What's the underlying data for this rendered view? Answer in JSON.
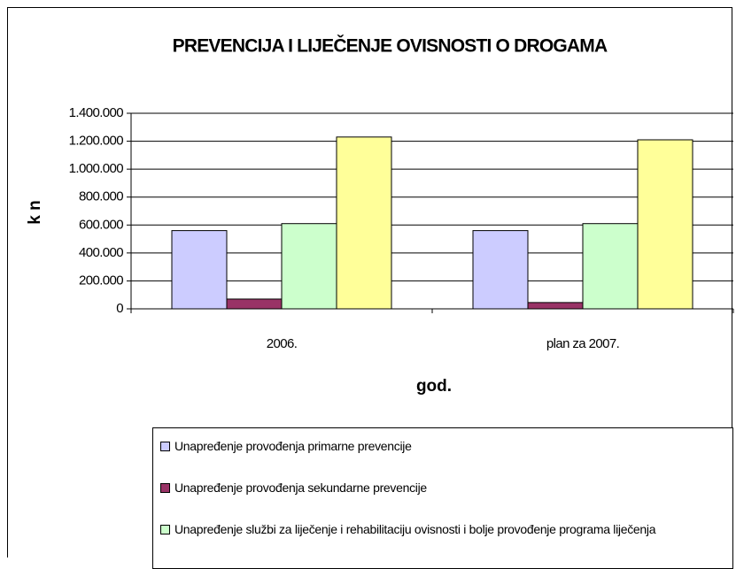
{
  "chart_data": {
    "type": "bar",
    "title": "PREVENCIJA I LIJEČENJE OVISNOSTI O DROGAMA",
    "xlabel": "god.",
    "ylabel": "k n",
    "categories": [
      "2006.",
      "plan za 2007."
    ],
    "series": [
      {
        "name": "Unapređenje provođenja primarne prevencije",
        "color": "#ccccff",
        "values": [
          560000,
          560000
        ]
      },
      {
        "name": "Unapređenje provođenja sekundarne prevencije",
        "color": "#993366",
        "values": [
          70000,
          45000
        ]
      },
      {
        "name": "Unapređenje službi za liječenje i rehabilitaciju ovisnosti i bolje provođenje programa liječenja",
        "color": "#ccffcc",
        "values": [
          610000,
          610000
        ]
      },
      {
        "color": "#ffff99",
        "values": [
          1230000,
          1210000
        ]
      }
    ],
    "ylim": [
      0,
      1400000
    ],
    "yticks": [
      0,
      {
        "value": 200000,
        "label": "200.000"
      },
      {
        "value": 400000,
        "label": "400.000"
      },
      {
        "value": 600000,
        "label": "600.000"
      },
      {
        "value": 800000,
        "label": "800.000"
      },
      {
        "value": 1000000,
        "label": "1.000.000"
      },
      {
        "value": 1200000,
        "label": "1.200.000"
      },
      {
        "value": 1400000,
        "label": "1.400.000"
      }
    ],
    "grid": true,
    "legend": "bottom"
  }
}
